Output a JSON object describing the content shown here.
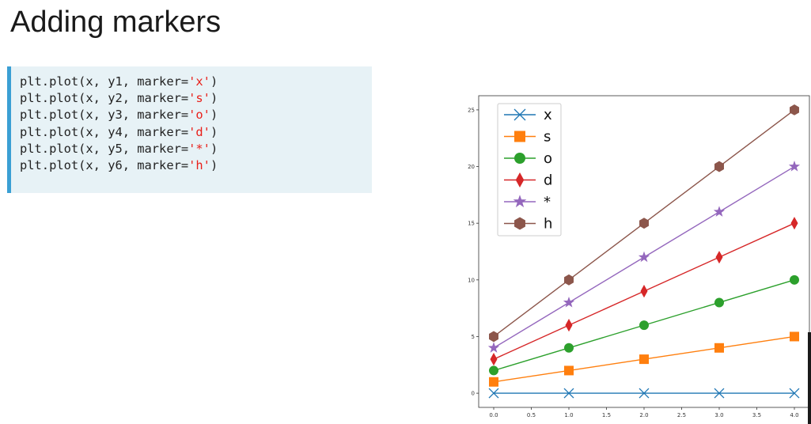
{
  "slide": {
    "title": "Adding markers"
  },
  "code": {
    "lines": [
      {
        "prefix": "plt.plot(x, y1, marker=",
        "literal": "'x'",
        "suffix": ")"
      },
      {
        "prefix": "plt.plot(x, y2, marker=",
        "literal": "'s'",
        "suffix": ")"
      },
      {
        "prefix": "plt.plot(x, y3, marker=",
        "literal": "'o'",
        "suffix": ")"
      },
      {
        "prefix": "plt.plot(x, y4, marker=",
        "literal": "'d'",
        "suffix": ")"
      },
      {
        "prefix": "plt.plot(x, y5, marker=",
        "literal": "'*'",
        "suffix": ")"
      },
      {
        "prefix": "plt.plot(x, y6, marker=",
        "literal": "'h'",
        "suffix": ")"
      }
    ],
    "colors": {
      "accent_bar": "#3a9fd4",
      "background": "#e7f2f6",
      "string": "#e8201a"
    }
  },
  "chart_data": {
    "type": "line",
    "title": "",
    "xlabel": "",
    "ylabel": "",
    "x": [
      0,
      1,
      2,
      3,
      4
    ],
    "xlim": [
      -0.2,
      4.2
    ],
    "ylim": [
      -1.25,
      26.25
    ],
    "xticks": [
      "0.0",
      "0.5",
      "1.0",
      "1.5",
      "2.0",
      "2.5",
      "3.0",
      "3.5",
      "4.0"
    ],
    "xtick_values": [
      0,
      0.5,
      1,
      1.5,
      2,
      2.5,
      3,
      3.5,
      4
    ],
    "yticks": [
      "0",
      "5",
      "10",
      "15",
      "20",
      "25"
    ],
    "ytick_values": [
      0,
      5,
      10,
      15,
      20,
      25
    ],
    "grid": false,
    "legend_position": "top-left",
    "series": [
      {
        "name": "x",
        "marker": "x",
        "color": "#1f77b4",
        "values": [
          0,
          0,
          0,
          0,
          0
        ]
      },
      {
        "name": "s",
        "marker": "s",
        "color": "#ff7f0e",
        "values": [
          1,
          2,
          3,
          4,
          5
        ]
      },
      {
        "name": "o",
        "marker": "o",
        "color": "#2ca02c",
        "values": [
          2,
          4,
          6,
          8,
          10
        ]
      },
      {
        "name": "d",
        "marker": "d",
        "color": "#d62728",
        "values": [
          3,
          6,
          9,
          12,
          15
        ]
      },
      {
        "name": "*",
        "marker": "*",
        "color": "#9467bd",
        "values": [
          4,
          8,
          12,
          16,
          20
        ]
      },
      {
        "name": "h",
        "marker": "h",
        "color": "#8c564b",
        "values": [
          5,
          10,
          15,
          20,
          25
        ]
      }
    ]
  }
}
